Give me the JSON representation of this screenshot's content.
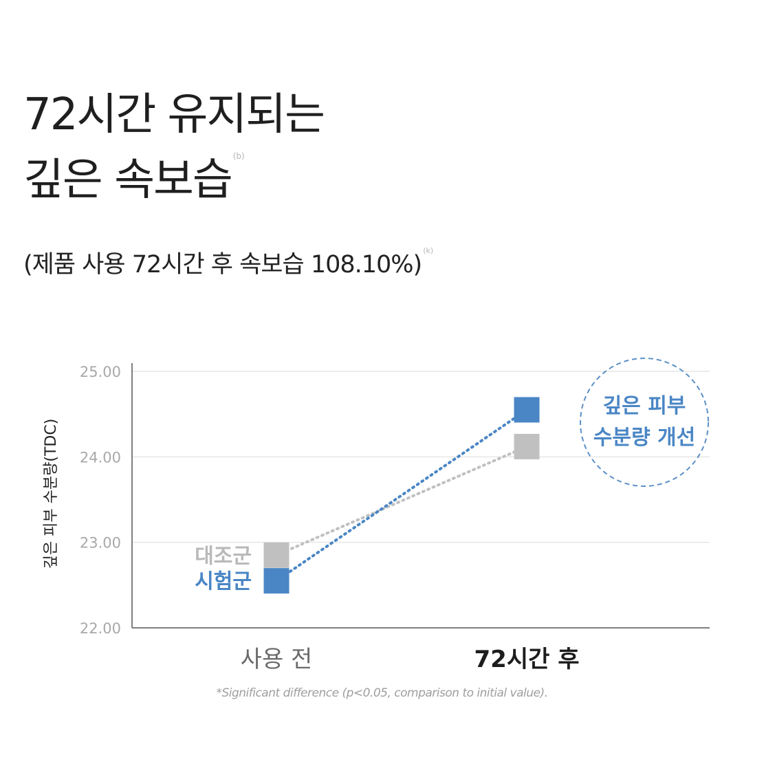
{
  "title": {
    "line1": "72시간 유지되는",
    "line2": "깊은 속보습",
    "marker": "(b)"
  },
  "subtitle": {
    "text": "(제품 사용 72시간 후 속보습 108.10%)",
    "marker": "(k)"
  },
  "badge": {
    "line1": "깊은 피부",
    "line2": "수분량 개선",
    "color": "#5b8fc7"
  },
  "footnote": "*Significant difference (p<0.05, comparison to initial value).",
  "chart_data": {
    "type": "line",
    "categories": [
      "사용 전",
      "72시간 후"
    ],
    "ylabel": "깊은 피부 수분량(TDC)",
    "ylim": [
      22.0,
      25.0
    ],
    "yticks": [
      "22.00",
      "23.00",
      "24.00",
      "25.00"
    ],
    "grid": true,
    "series": [
      {
        "name": "대조군",
        "values": [
          22.85,
          24.12
        ],
        "color": "#c0c0c0"
      },
      {
        "name": "시험군",
        "values": [
          22.55,
          24.55
        ],
        "color": "#4a86c5"
      }
    ]
  }
}
